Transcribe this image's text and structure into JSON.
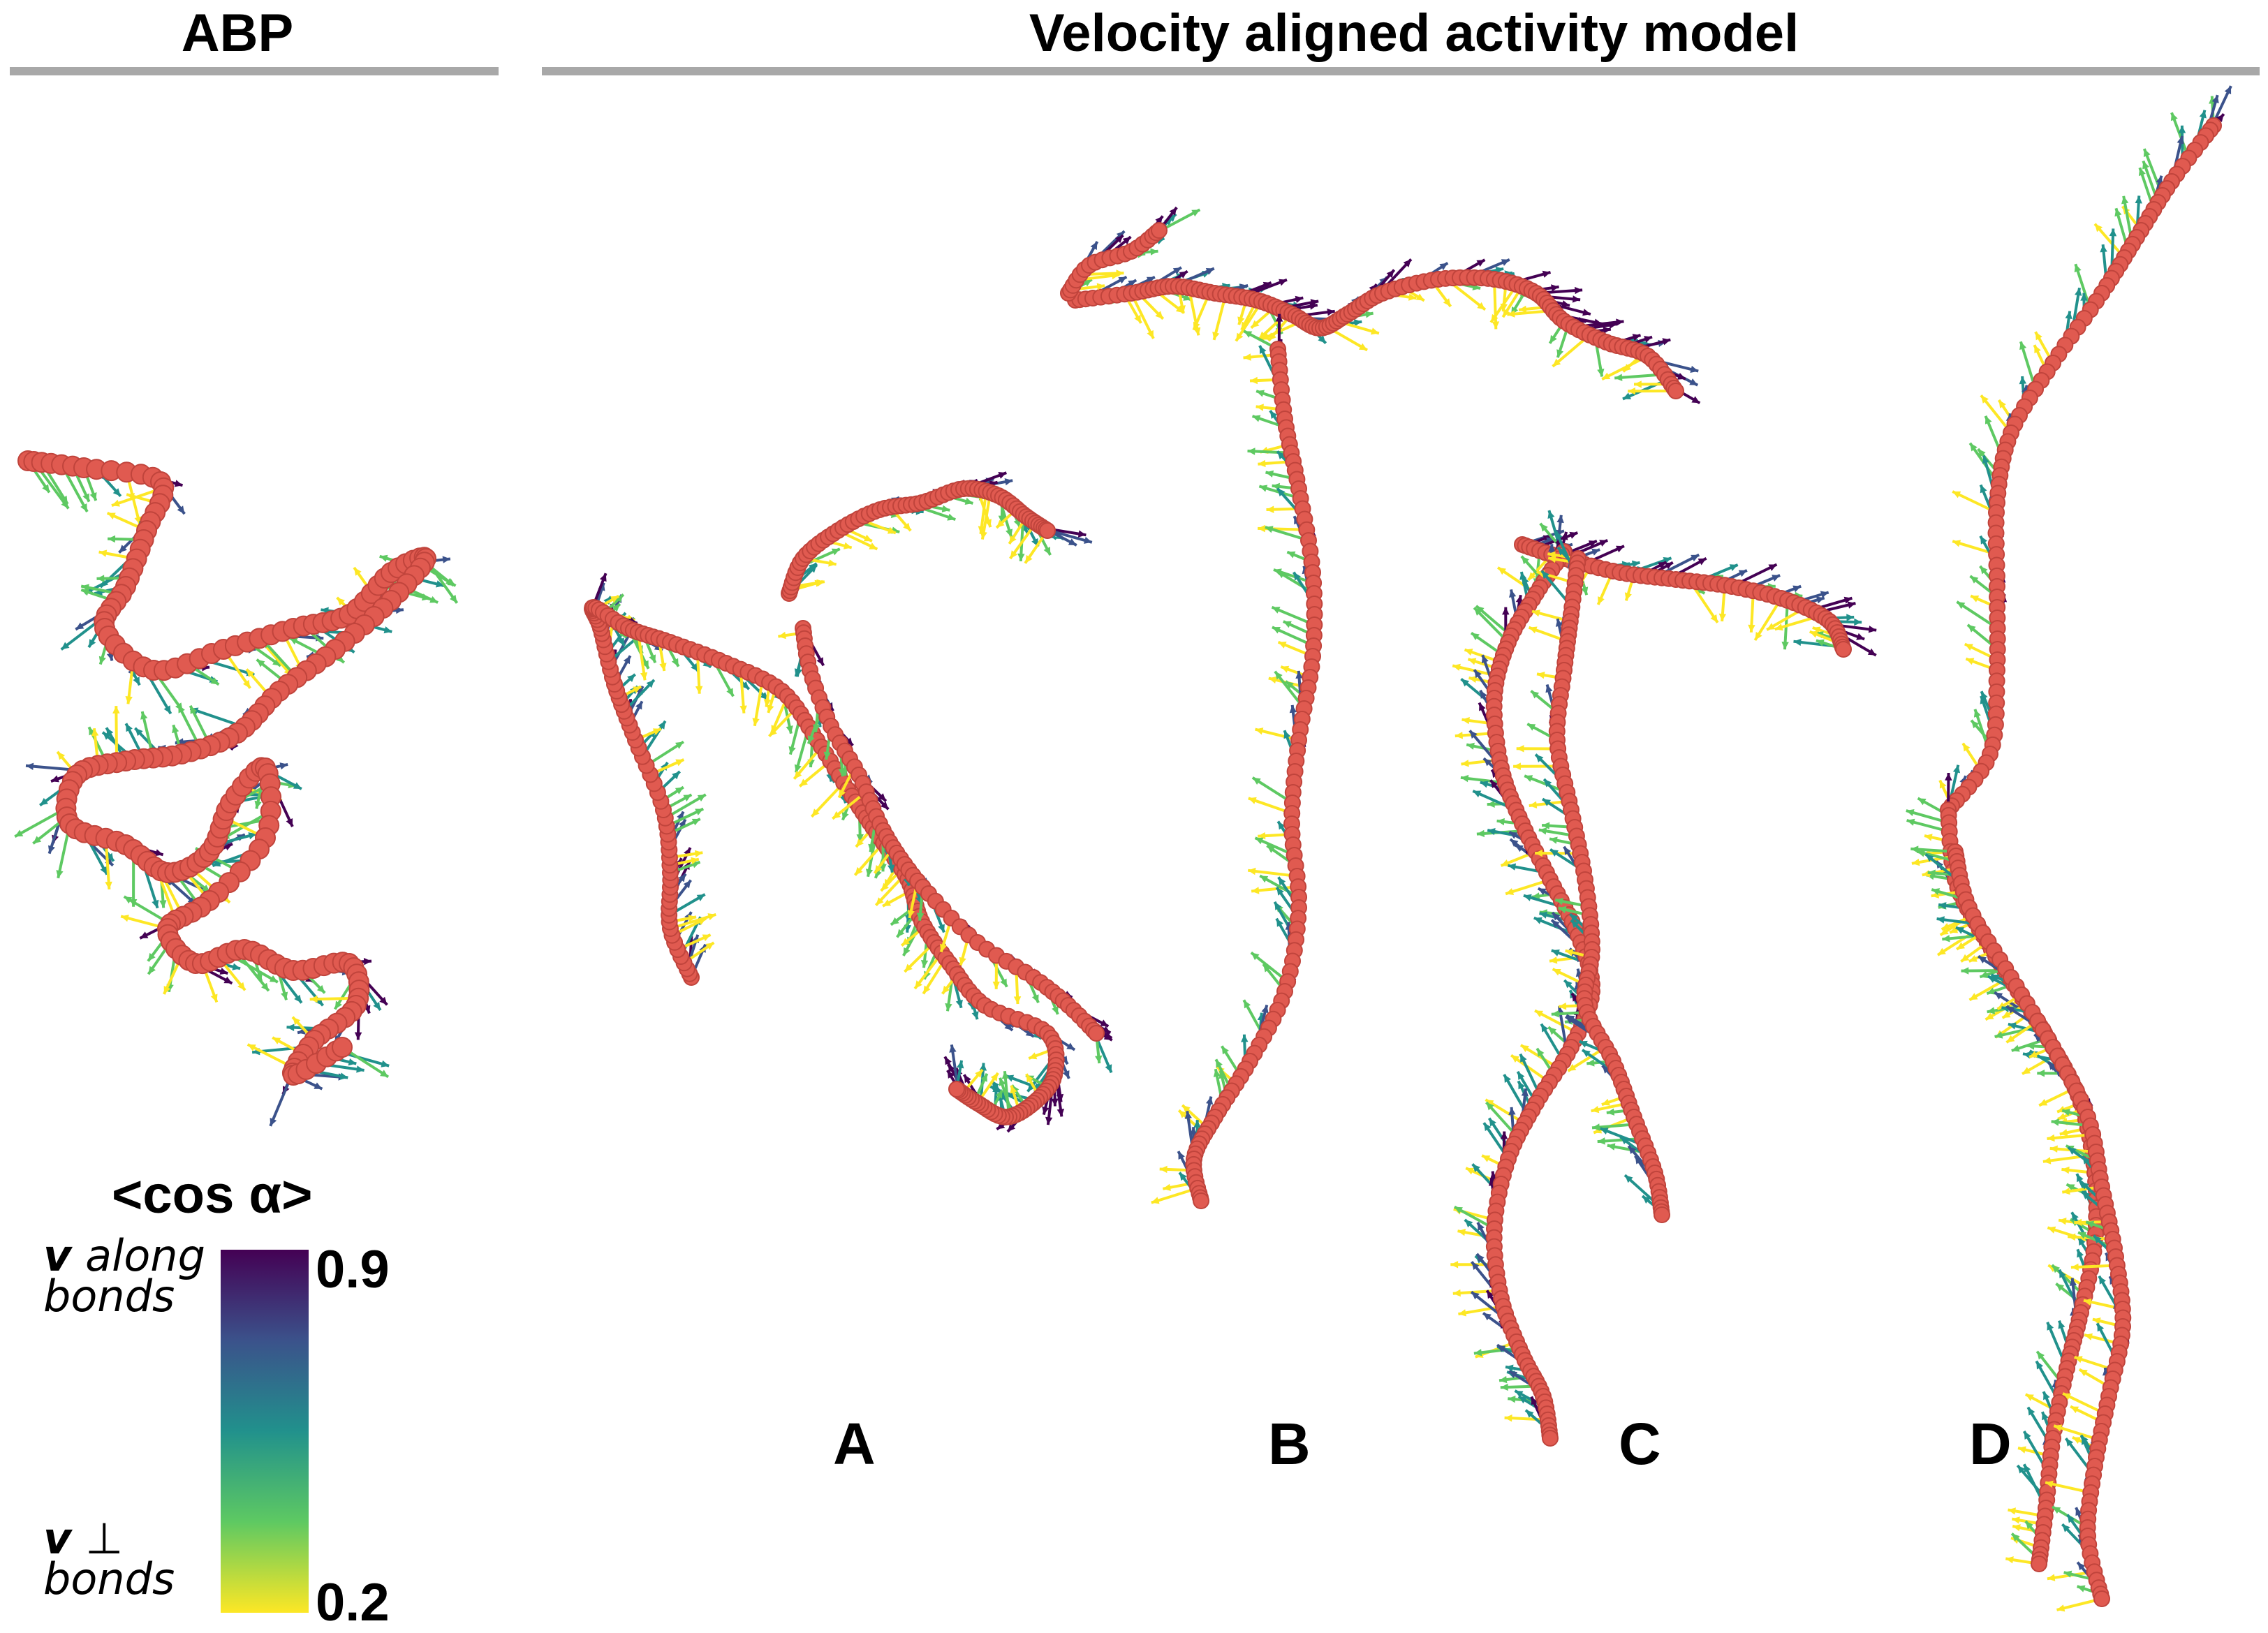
{
  "headers": {
    "left": "ABP",
    "right": "Velocity aligned activity model"
  },
  "panels": [
    "A",
    "B",
    "C",
    "D"
  ],
  "colorbar": {
    "title": "<cos α>",
    "max_label": "0.9",
    "min_label": "0.2",
    "top_desc_symbol": "v",
    "top_desc_text": "along",
    "top_desc_line2": "bonds",
    "bottom_desc_symbol": "v",
    "bottom_desc_text": "⊥",
    "bottom_desc_line2": "bonds",
    "colormap": [
      "#440154",
      "#3b528b",
      "#21918c",
      "#5ec962",
      "#fde725"
    ]
  },
  "colors": {
    "bead": "#e05a50",
    "bead_outline": "#c0443c",
    "rule": "#a8a8a8"
  }
}
